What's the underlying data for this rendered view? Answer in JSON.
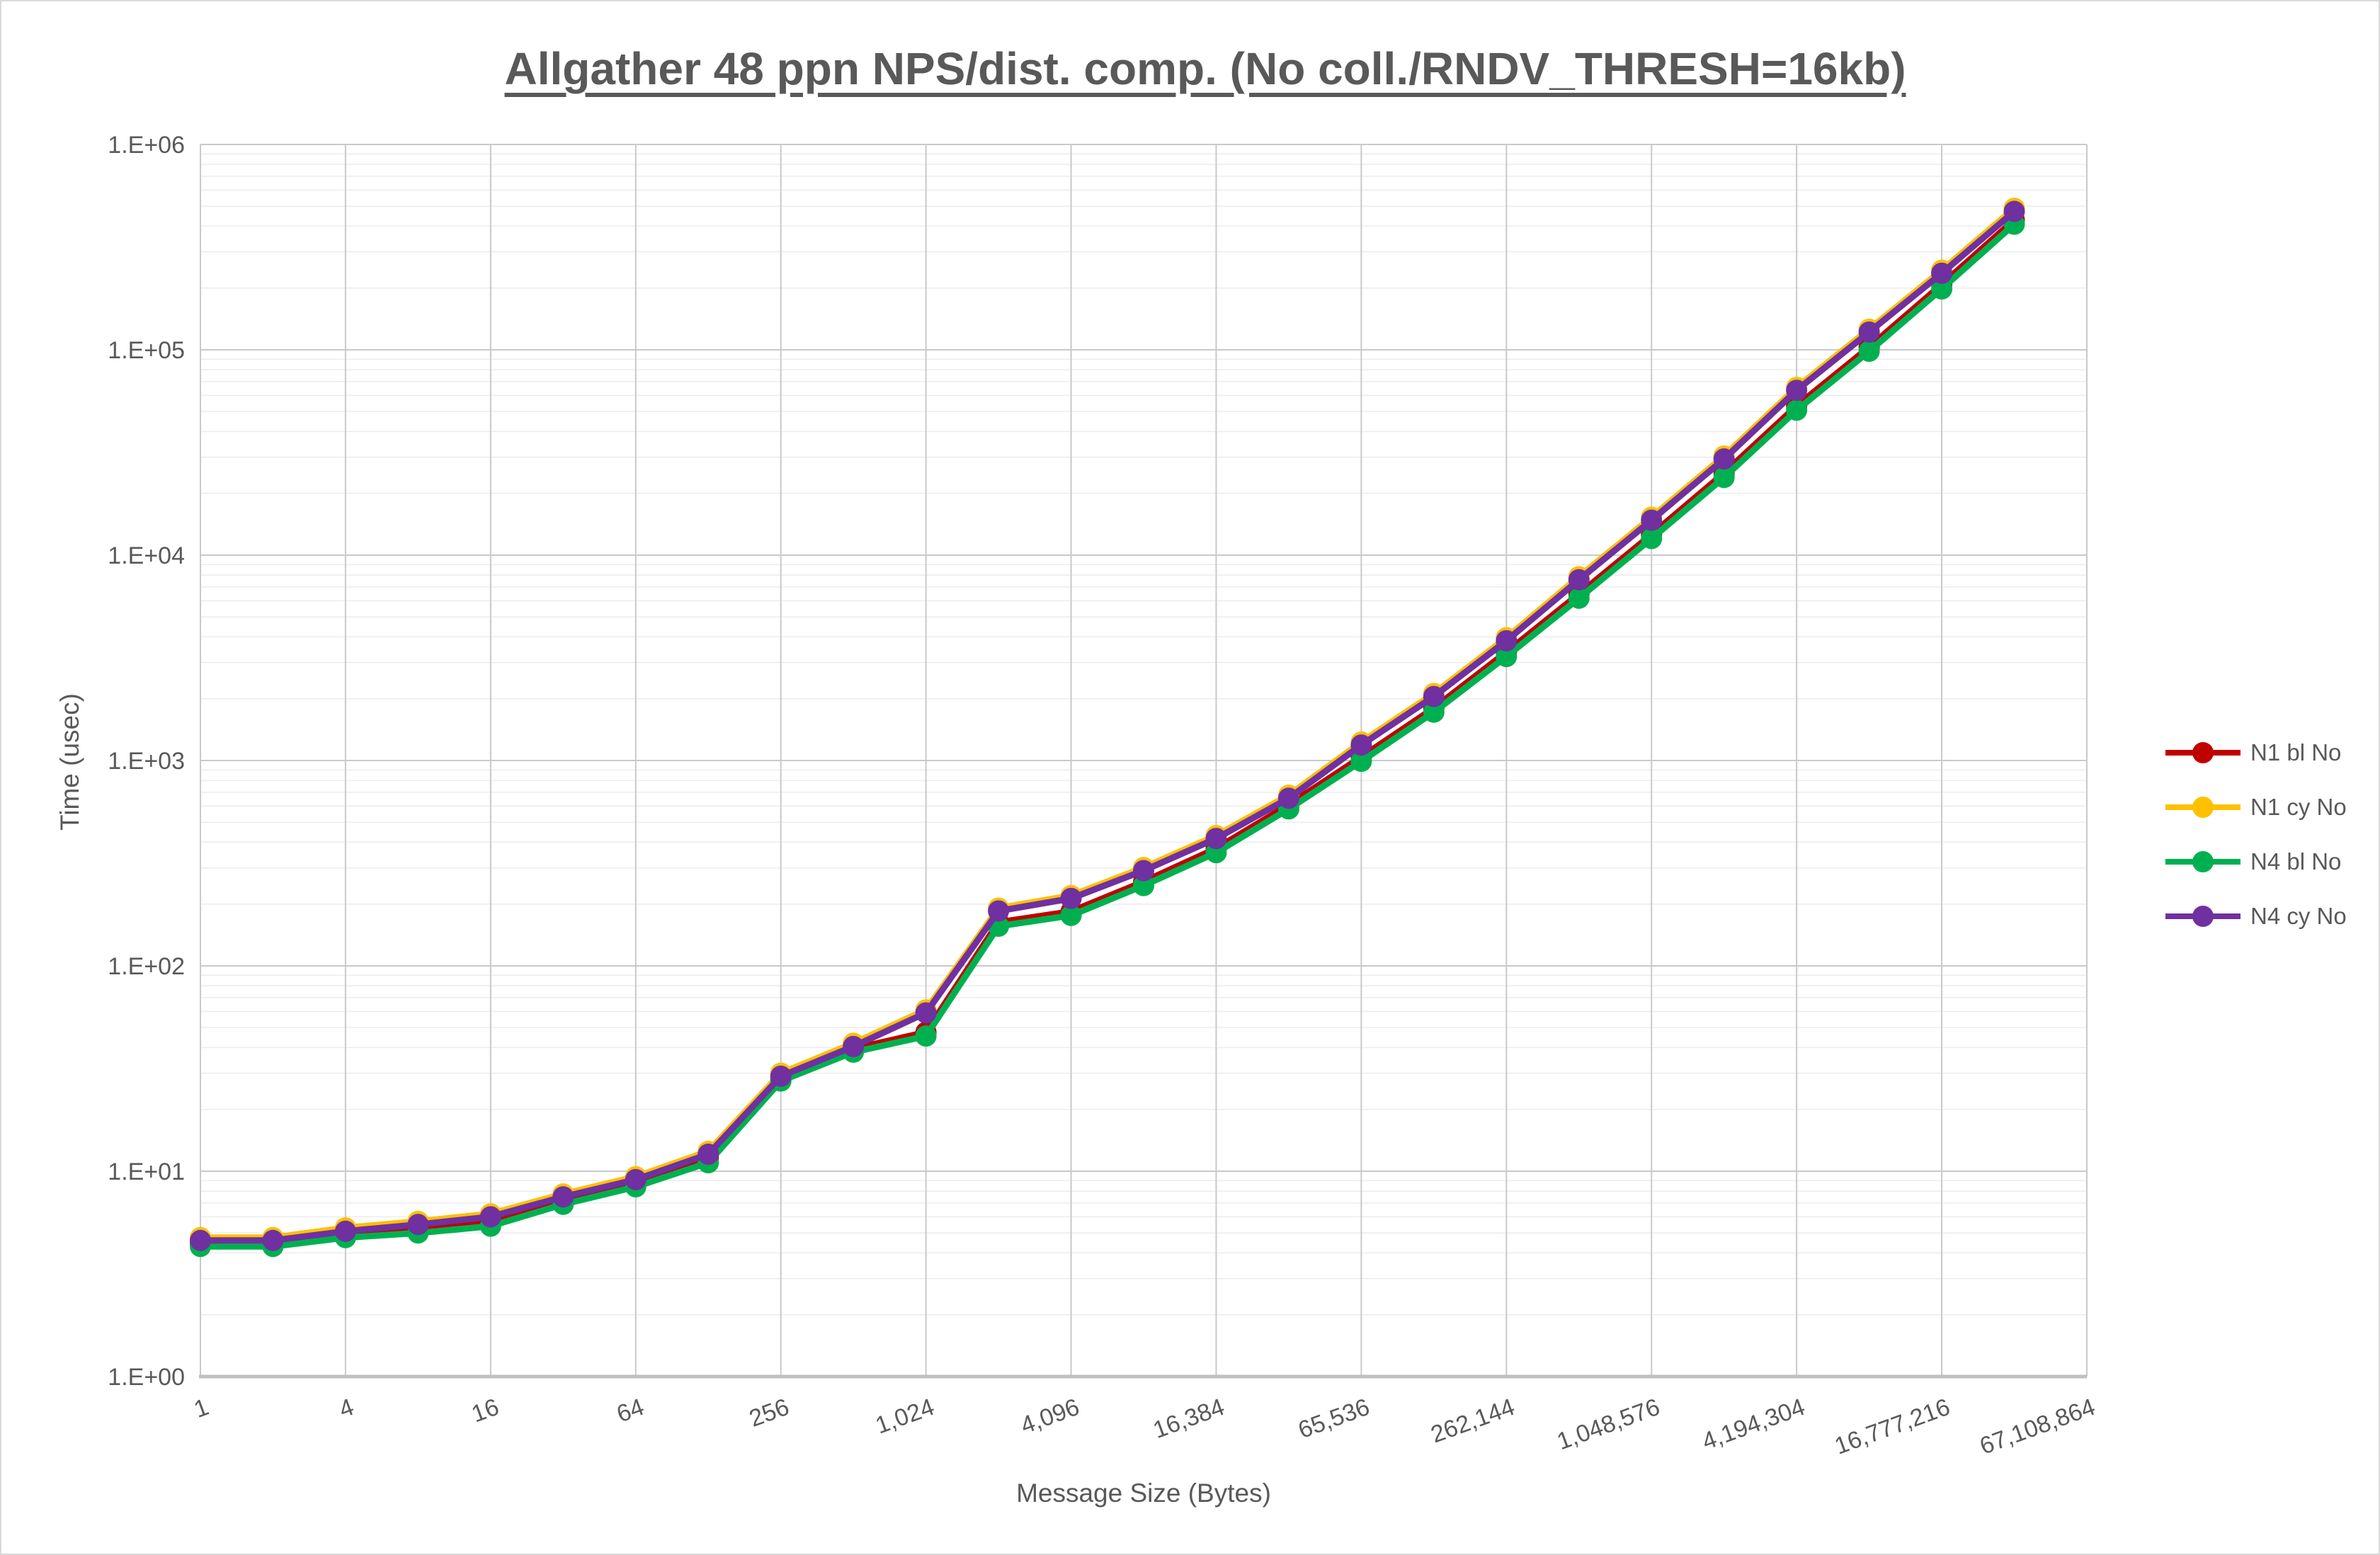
{
  "title": "Allgather 48 ppn NPS/dist. comp. (No coll./RNDV_THRESH=16kb)",
  "axes": {
    "x": {
      "title": "Message Size (Bytes)",
      "tick_labels": [
        "1",
        "4",
        "16",
        "64",
        "256",
        "1,024",
        "4,096",
        "16,384",
        "65,536",
        "262,144",
        "1,048,576",
        "4,194,304",
        "16,777,216",
        "67,108,864"
      ]
    },
    "y": {
      "title": "Time (usec)",
      "tick_labels": [
        "1.E+00",
        "1.E+01",
        "1.E+02",
        "1.E+03",
        "1.E+04",
        "1.E+05",
        "1.E+06"
      ]
    }
  },
  "legend": {
    "position": "right",
    "entries": [
      {
        "label": "N1 bl No",
        "color": "#C00000"
      },
      {
        "label": "N1 cy No",
        "color": "#FFC000"
      },
      {
        "label": "N4 bl No",
        "color": "#00B050"
      },
      {
        "label": "N4 cy No",
        "color": "#7030A0"
      }
    ]
  },
  "chart_data": {
    "type": "line",
    "title": "Allgather 48 ppn NPS/dist. comp. (No coll./RNDV_THRESH=16kb)",
    "xlabel": "Message Size (Bytes)",
    "ylabel": "Time (usec)",
    "x_axis": "log2 message sizes, one category per power of two; labels every 4x",
    "y_axis": "log10 scale",
    "ylim": [
      1,
      1000000
    ],
    "grid": true,
    "legend_position": "right",
    "x": [
      1,
      2,
      4,
      8,
      16,
      32,
      64,
      128,
      256,
      512,
      1024,
      2048,
      4096,
      8192,
      16384,
      32768,
      65536,
      131072,
      262144,
      524288,
      1048576,
      2097152,
      4194304,
      8388608,
      16777216,
      33554432
    ],
    "x_total_slots": 27,
    "series": [
      {
        "name": "N1 bl No",
        "color": "#C00000",
        "values": [
          4.45,
          4.45,
          4.9,
          5.2,
          5.7,
          7.2,
          8.8,
          11.5,
          28,
          39.5,
          47.5,
          163,
          184,
          257,
          373,
          608,
          1040,
          1800,
          3370,
          6470,
          12600,
          25100,
          53300,
          103000,
          208000,
          429000
        ]
      },
      {
        "name": "N1 cy No",
        "color": "#FFC000",
        "values": [
          4.75,
          4.75,
          5.3,
          5.7,
          6.2,
          7.75,
          9.4,
          12.5,
          30,
          42,
          61,
          191,
          220,
          301,
          431,
          678,
          1230,
          2120,
          3960,
          7850,
          15300,
          30400,
          65600,
          126000,
          244000,
          489000
        ]
      },
      {
        "name": "N4 bl No",
        "color": "#00B050",
        "values": [
          4.3,
          4.3,
          4.75,
          5.0,
          5.4,
          6.9,
          8.4,
          11.0,
          27.5,
          38,
          45.5,
          156,
          176,
          246,
          356,
          581,
          991,
          1720,
          3210,
          6170,
          12050,
          23900,
          50800,
          98400,
          198000,
          409000
        ]
      },
      {
        "name": "N4 cy No",
        "color": "#7030A0",
        "values": [
          4.6,
          4.6,
          5.1,
          5.5,
          6.0,
          7.5,
          9.1,
          12.1,
          29,
          40.5,
          59,
          185,
          213,
          291,
          417,
          655,
          1190,
          2050,
          3830,
          7590,
          14800,
          29400,
          63500,
          122000,
          236000,
          472000
        ]
      }
    ]
  },
  "style": {
    "text_color": "#595959",
    "major_grid_color": "#C9C9C9",
    "minor_grid_color": "#ECECEC",
    "axis_line_color": "#BFBFBF"
  }
}
